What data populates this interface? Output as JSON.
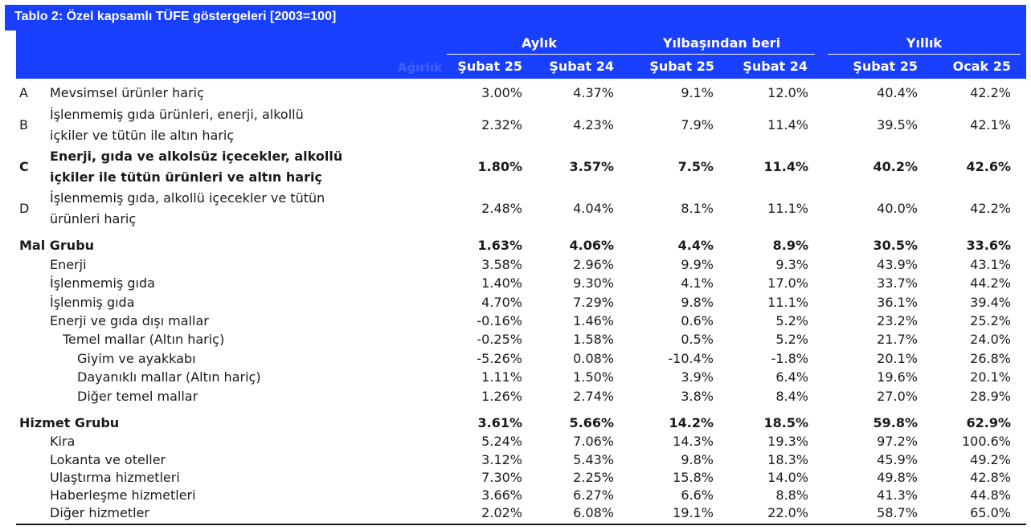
{
  "title": "Tablo 2: Özel kapsamlı TÜFE göstergeleri [2003=100]",
  "header": {
    "weight_label": "Ağırlık",
    "groups": [
      {
        "label": "Aylık",
        "cols": [
          "Şubat 25",
          "Şubat 24"
        ]
      },
      {
        "label": "Yılbaşından beri",
        "cols": [
          "Şubat 25",
          "Şubat 24"
        ]
      },
      {
        "label": "Yıllık",
        "cols": [
          "Şubat 25",
          "Ocak 25"
        ]
      }
    ]
  },
  "rows": [
    {
      "code": "A",
      "label": [
        "Mevsimsel ürünler hariç"
      ],
      "values": [
        "3.00%",
        "4.37%",
        "9.1%",
        "12.0%",
        "40.4%",
        "42.2%"
      ]
    },
    {
      "code": "B",
      "label": [
        "İşlenmemiş gıda ürünleri, enerji, alkollü",
        "içkiler ve tütün ile altın hariç"
      ],
      "values": [
        "2.32%",
        "4.23%",
        "7.9%",
        "11.4%",
        "39.5%",
        "42.1%"
      ]
    },
    {
      "code": "C",
      "label": [
        "Enerji, gıda ve alkolsüz içecekler, alkollü",
        "içkiler ile tütün ürünleri ve altın hariç"
      ],
      "values": [
        "1.80%",
        "3.57%",
        "7.5%",
        "11.4%",
        "40.2%",
        "42.6%"
      ]
    },
    {
      "code": "D",
      "label": [
        "İşlenmemiş gıda, alkollü içecekler ve tütün",
        "ürünleri hariç"
      ],
      "values": [
        "2.48%",
        "4.04%",
        "8.1%",
        "11.1%",
        "40.0%",
        "42.2%"
      ]
    },
    {
      "code": "",
      "label": [
        "Mal Grubu"
      ],
      "values": [
        "1.63%",
        "4.06%",
        "4.4%",
        "8.9%",
        "30.5%",
        "33.6%"
      ]
    },
    {
      "code": "",
      "label": [
        "Enerji"
      ],
      "values": [
        "3.58%",
        "2.96%",
        "9.9%",
        "9.3%",
        "43.9%",
        "43.1%"
      ]
    },
    {
      "code": "",
      "label": [
        "İşlenmemiş gıda"
      ],
      "values": [
        "1.40%",
        "9.30%",
        "4.1%",
        "17.0%",
        "33.7%",
        "44.2%"
      ]
    },
    {
      "code": "",
      "label": [
        "İşlenmiş gıda"
      ],
      "values": [
        "4.70%",
        "7.29%",
        "9.8%",
        "11.1%",
        "36.1%",
        "39.4%"
      ]
    },
    {
      "code": "",
      "label": [
        "Enerji ve gıda dışı mallar"
      ],
      "values": [
        "-0.16%",
        "1.46%",
        "0.6%",
        "5.2%",
        "23.2%",
        "25.2%"
      ]
    },
    {
      "code": "",
      "label": [
        "Temel mallar (Altın hariç)"
      ],
      "values": [
        "-0.25%",
        "1.58%",
        "0.5%",
        "5.2%",
        "21.7%",
        "24.0%"
      ]
    },
    {
      "code": "",
      "label": [
        "Giyim ve ayakkabı"
      ],
      "values": [
        "-5.26%",
        "0.08%",
        "-10.4%",
        "-1.8%",
        "20.1%",
        "26.8%"
      ]
    },
    {
      "code": "",
      "label": [
        "Dayanıklı mallar (Altın hariç)"
      ],
      "values": [
        "1.11%",
        "1.50%",
        "3.9%",
        "6.4%",
        "19.6%",
        "20.1%"
      ]
    },
    {
      "code": "",
      "label": [
        "Diğer temel mallar"
      ],
      "values": [
        "1.26%",
        "2.74%",
        "3.8%",
        "8.4%",
        "27.0%",
        "28.9%"
      ]
    },
    {
      "code": "",
      "label": [
        "Hizmet Grubu"
      ],
      "values": [
        "3.61%",
        "5.66%",
        "14.2%",
        "18.5%",
        "59.8%",
        "62.9%"
      ]
    },
    {
      "code": "",
      "label": [
        "Kira"
      ],
      "values": [
        "5.24%",
        "7.06%",
        "14.3%",
        "19.3%",
        "97.2%",
        "100.6%"
      ]
    },
    {
      "code": "",
      "label": [
        "Lokanta ve oteller"
      ],
      "values": [
        "3.12%",
        "5.43%",
        "9.8%",
        "18.3%",
        "45.9%",
        "49.2%"
      ]
    },
    {
      "code": "",
      "label": [
        "Ulaştırma hizmetleri"
      ],
      "values": [
        "7.30%",
        "2.25%",
        "15.8%",
        "14.0%",
        "49.8%",
        "42.8%"
      ]
    },
    {
      "code": "",
      "label": [
        "Haberleşme hizmetleri"
      ],
      "values": [
        "3.66%",
        "6.27%",
        "6.6%",
        "8.8%",
        "41.3%",
        "44.8%"
      ]
    },
    {
      "code": "",
      "label": [
        "Diğer hizmetler"
      ],
      "values": [
        "2.02%",
        "6.08%",
        "19.1%",
        "22.0%",
        "58.7%",
        "65.0%"
      ]
    }
  ]
}
